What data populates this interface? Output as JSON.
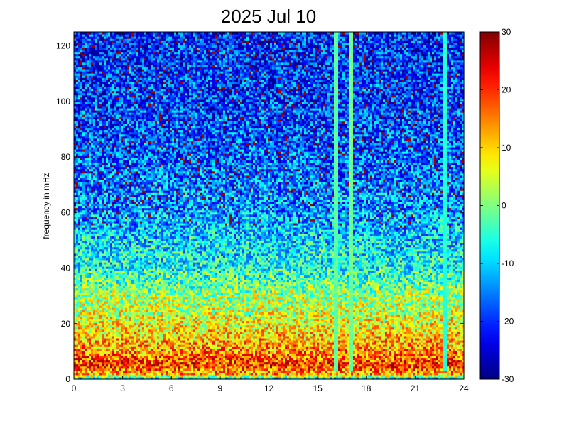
{
  "chart_data": {
    "type": "heatmap",
    "title": "2025 Jul 10",
    "xlabel": "",
    "ylabel": "frequency in mHz",
    "xlim": [
      0,
      24
    ],
    "ylim": [
      0,
      125
    ],
    "x_ticks": [
      "0",
      "3",
      "6",
      "9",
      "12",
      "15",
      "18",
      "21",
      "24"
    ],
    "y_ticks": [
      "0",
      "20",
      "40",
      "60",
      "80",
      "100",
      "120"
    ],
    "colorbar": {
      "colormap": "jet",
      "range": [
        -30,
        30
      ],
      "ticks": [
        "30",
        "20",
        "10",
        "0",
        "-10",
        "-20",
        "-30"
      ]
    },
    "value_profile_by_frequency_mHz": [
      {
        "freq": 0,
        "value": -12
      },
      {
        "freq": 2,
        "value": 12
      },
      {
        "freq": 5,
        "value": 20
      },
      {
        "freq": 10,
        "value": 14
      },
      {
        "freq": 20,
        "value": 7
      },
      {
        "freq": 30,
        "value": 2
      },
      {
        "freq": 40,
        "value": -6
      },
      {
        "freq": 60,
        "value": -13
      },
      {
        "freq": 80,
        "value": -17
      },
      {
        "freq": 100,
        "value": -19
      },
      {
        "freq": 125,
        "value": -20
      }
    ],
    "vertical_streaks_hours": [
      {
        "hour": 16.1,
        "value": -2
      },
      {
        "hour": 17.1,
        "value": -1
      },
      {
        "hour": 22.8,
        "value": -5
      }
    ],
    "grid": false
  }
}
